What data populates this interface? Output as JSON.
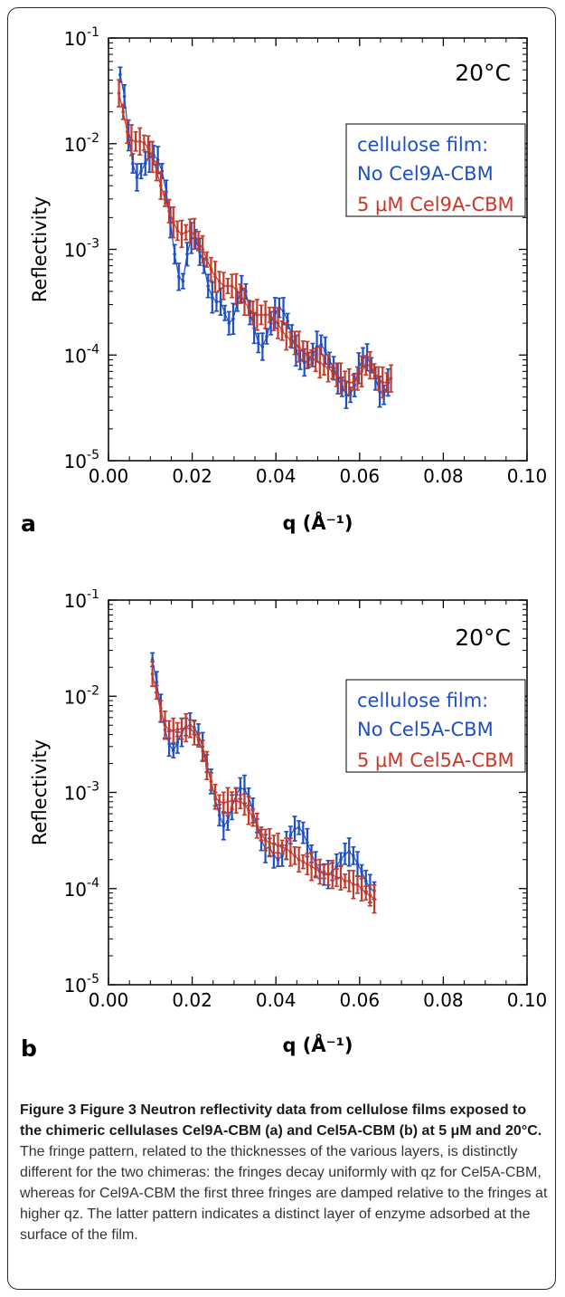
{
  "figure": {
    "caption_title": "Figure 3 Figure 3 Neutron reflectivity data from cellulose films exposed to the chimeric cellulases Cel9A-CBM (a) and Cel5A-CBM (b) at 5 μM and 20°C.",
    "caption_body": "The fringe pattern, related to the thicknesses of the various layers, is distinctly different for the two chimeras: the fringes decay uniformly with qz for Cel5A-CBM, whereas for Cel9A-CBM the first three fringes are damped relative to the fringes at higher qz. The latter pattern indicates a distinct layer of enzyme adsorbed at the surface of the film."
  },
  "chart_data": [
    {
      "type": "scatter",
      "panel_label": "a",
      "annotation": "20°C",
      "xlabel": "q",
      "xlabel_unit": "(Å⁻¹)",
      "ylabel": "Reflectivity",
      "xlim": [
        0.0,
        0.1
      ],
      "ylim": [
        1e-05,
        0.1
      ],
      "yscale": "log",
      "x_ticks": [
        "0.00",
        "0.02",
        "0.04",
        "0.06",
        "0.08",
        "0.10"
      ],
      "y_ticks": [
        {
          "base": "10",
          "exp": "-1"
        },
        {
          "base": "10",
          "exp": "-2"
        },
        {
          "base": "10",
          "exp": "-3"
        },
        {
          "base": "10",
          "exp": "-4"
        },
        {
          "base": "10",
          "exp": "-5"
        }
      ],
      "legend": {
        "header": "cellulose film:",
        "position": "top-right",
        "entries": [
          "No Cel9A-CBM",
          "5 μM Cel9A-CBM"
        ]
      },
      "series": [
        {
          "name": "No Cel9A-CBM",
          "color": "#1f4fc4",
          "x": [
            0.0028,
            0.0038,
            0.0048,
            0.0058,
            0.0068,
            0.0078,
            0.0088,
            0.0098,
            0.0108,
            0.0118,
            0.0128,
            0.0138,
            0.0148,
            0.0158,
            0.0168,
            0.0178,
            0.0188,
            0.0198,
            0.0208,
            0.0218,
            0.0228,
            0.0238,
            0.0248,
            0.0258,
            0.0268,
            0.0278,
            0.0288,
            0.0298,
            0.0308,
            0.0318,
            0.0328,
            0.0338,
            0.0348,
            0.0358,
            0.0368,
            0.0378,
            0.0388,
            0.0398,
            0.0408,
            0.0418,
            0.0428,
            0.0438,
            0.0448,
            0.0458,
            0.0468,
            0.0478,
            0.0488,
            0.0498,
            0.0508,
            0.0518,
            0.0528,
            0.0538,
            0.0548,
            0.0558,
            0.0568,
            0.0578,
            0.0588,
            0.0598,
            0.0608,
            0.0618,
            0.0628,
            0.0638,
            0.0648,
            0.0658,
            0.0668
          ],
          "y": [
            0.045,
            0.028,
            0.012,
            0.0065,
            0.0048,
            0.0055,
            0.0065,
            0.0075,
            0.0078,
            0.007,
            0.0055,
            0.0035,
            0.0018,
            0.0009,
            0.00055,
            0.0005,
            0.0009,
            0.00128,
            0.00125,
            0.00095,
            0.0007,
            0.00045,
            0.00035,
            0.00032,
            0.00032,
            0.00025,
            0.0002,
            0.00022,
            0.00032,
            0.00042,
            0.0004,
            0.00025,
            0.00018,
            0.00013,
            0.00012,
            0.00015,
            0.0002,
            0.00025,
            0.00028,
            0.00026,
            0.00021,
            0.00015,
            0.00011,
            9e-05,
            8.5e-05,
            9e-05,
            0.0001,
            0.00012,
            0.000125,
            0.00011,
            9e-05,
            7.5e-05,
            6e-05,
            5e-05,
            4.2e-05,
            4.2e-05,
            5.2e-05,
            7.5e-05,
            9.5e-05,
            9.5e-05,
            8e-05,
            6e-05,
            4.5e-05,
            4.2e-05,
            5.5e-05
          ]
        },
        {
          "name": "5 μM Cel9A-CBM",
          "color": "#c43a2a",
          "x": [
            0.0025,
            0.0035,
            0.0045,
            0.0055,
            0.0065,
            0.0075,
            0.0085,
            0.0095,
            0.0105,
            0.0115,
            0.0125,
            0.0135,
            0.0145,
            0.0155,
            0.0165,
            0.0175,
            0.0185,
            0.0195,
            0.0205,
            0.0215,
            0.0225,
            0.0235,
            0.0245,
            0.0255,
            0.0265,
            0.0275,
            0.0285,
            0.0295,
            0.0305,
            0.0315,
            0.0325,
            0.0335,
            0.0345,
            0.0355,
            0.0365,
            0.0375,
            0.0385,
            0.0395,
            0.0405,
            0.0415,
            0.0425,
            0.0435,
            0.0445,
            0.0455,
            0.0465,
            0.0475,
            0.0485,
            0.0495,
            0.0505,
            0.0515,
            0.0525,
            0.0535,
            0.0545,
            0.0555,
            0.0565,
            0.0575,
            0.0585,
            0.0595,
            0.0605,
            0.0615,
            0.0625,
            0.0635,
            0.0645,
            0.0655,
            0.0665,
            0.0675
          ],
          "y": [
            0.03,
            0.02,
            0.013,
            0.0108,
            0.0105,
            0.0105,
            0.0102,
            0.0092,
            0.0075,
            0.0055,
            0.004,
            0.003,
            0.0023,
            0.0018,
            0.0015,
            0.0014,
            0.00145,
            0.0015,
            0.0014,
            0.0012,
            0.001,
            0.0008,
            0.00065,
            0.00055,
            0.0005,
            0.00045,
            0.00045,
            0.00045,
            0.00042,
            0.00038,
            0.00032,
            0.00028,
            0.00025,
            0.00024,
            0.00024,
            0.00024,
            0.00024,
            0.00022,
            0.0002,
            0.00017,
            0.00015,
            0.00014,
            0.00013,
            0.00012,
            0.00011,
            0.0001,
            9.5e-05,
            9e-05,
            8.5e-05,
            8e-05,
            7.5e-05,
            7e-05,
            6.5e-05,
            6e-05,
            5.7e-05,
            5.5e-05,
            5.5e-05,
            6e-05,
            7e-05,
            8e-05,
            8e-05,
            7e-05,
            6e-05,
            5.5e-05,
            5.5e-05,
            6e-05
          ]
        }
      ]
    },
    {
      "type": "scatter",
      "panel_label": "b",
      "annotation": "20°C",
      "xlabel": "q",
      "xlabel_unit": "(Å⁻¹)",
      "ylabel": "Reflectivity",
      "xlim": [
        0.0,
        0.1
      ],
      "ylim": [
        1e-05,
        0.1
      ],
      "yscale": "log",
      "x_ticks": [
        "0.00",
        "0.02",
        "0.04",
        "0.06",
        "0.08",
        "0.10"
      ],
      "y_ticks": [
        {
          "base": "10",
          "exp": "-1"
        },
        {
          "base": "10",
          "exp": "-2"
        },
        {
          "base": "10",
          "exp": "-3"
        },
        {
          "base": "10",
          "exp": "-4"
        },
        {
          "base": "10",
          "exp": "-5"
        }
      ],
      "legend": {
        "header": "cellulose film:",
        "position": "top-right",
        "entries": [
          "No Cel5A-CBM",
          "5 μM Cel5A-CBM"
        ]
      },
      "series": [
        {
          "name": "No Cel5A-CBM",
          "color": "#1f4fc4",
          "x": [
            0.0105,
            0.0115,
            0.0125,
            0.0135,
            0.0145,
            0.0155,
            0.0165,
            0.0175,
            0.0185,
            0.0195,
            0.0205,
            0.0215,
            0.0225,
            0.0235,
            0.0245,
            0.0255,
            0.0265,
            0.0275,
            0.0285,
            0.0295,
            0.0305,
            0.0315,
            0.0325,
            0.0335,
            0.0345,
            0.0355,
            0.0365,
            0.0375,
            0.0385,
            0.0395,
            0.0405,
            0.0415,
            0.0425,
            0.0435,
            0.0445,
            0.0455,
            0.0465,
            0.0475,
            0.0485,
            0.0495,
            0.0505,
            0.0515,
            0.0525,
            0.0535,
            0.0545,
            0.0555,
            0.0565,
            0.0575,
            0.0585,
            0.0595,
            0.0605,
            0.0615,
            0.0625,
            0.0635
          ],
          "y": [
            0.024,
            0.014,
            0.0075,
            0.0045,
            0.0032,
            0.0027,
            0.0033,
            0.0042,
            0.0048,
            0.005,
            0.0047,
            0.004,
            0.003,
            0.002,
            0.0013,
            0.00085,
            0.00058,
            0.00045,
            0.0005,
            0.0007,
            0.00095,
            0.0011,
            0.00108,
            0.0009,
            0.00065,
            0.00045,
            0.00032,
            0.00026,
            0.00027,
            0.00022,
            0.0002,
            0.00022,
            0.00028,
            0.00036,
            0.00042,
            0.00043,
            0.00038,
            0.0003,
            0.00023,
            0.00018,
            0.00015,
            0.00014,
            0.00014,
            0.00015,
            0.00017,
            0.0002,
            0.00023,
            0.00024,
            0.00022,
            0.00018,
            0.00015,
            0.00012,
            0.0001,
            9.5e-05
          ]
        },
        {
          "name": "5 μM Cel5A-CBM",
          "color": "#c43a2a",
          "x": [
            0.0105,
            0.0115,
            0.0125,
            0.0135,
            0.0145,
            0.0155,
            0.0165,
            0.0175,
            0.0185,
            0.0195,
            0.0205,
            0.0215,
            0.0225,
            0.0235,
            0.0245,
            0.0255,
            0.0265,
            0.0275,
            0.0285,
            0.0295,
            0.0305,
            0.0315,
            0.0325,
            0.0335,
            0.0345,
            0.0355,
            0.0365,
            0.0375,
            0.0385,
            0.0395,
            0.0405,
            0.0415,
            0.0425,
            0.0435,
            0.0445,
            0.0455,
            0.0465,
            0.0475,
            0.0485,
            0.0495,
            0.0505,
            0.0515,
            0.0525,
            0.0535,
            0.0545,
            0.0555,
            0.0565,
            0.0575,
            0.0585,
            0.0595,
            0.0605,
            0.0615,
            0.0625,
            0.0635
          ],
          "y": [
            0.017,
            0.011,
            0.007,
            0.005,
            0.0045,
            0.0044,
            0.0045,
            0.0046,
            0.0047,
            0.0046,
            0.0042,
            0.0035,
            0.0027,
            0.0019,
            0.0013,
            0.0009,
            0.0008,
            0.00078,
            0.0008,
            0.00082,
            0.00082,
            0.0008,
            0.00075,
            0.00065,
            0.00055,
            0.00045,
            0.00037,
            0.00032,
            0.0003,
            0.00029,
            0.00028,
            0.00027,
            0.00026,
            0.00024,
            0.00022,
            0.0002,
            0.00019,
            0.00018,
            0.00017,
            0.00016,
            0.00015,
            0.00015,
            0.00014,
            0.00014,
            0.00013,
            0.00013,
            0.00012,
            0.00012,
            0.00011,
            0.00011,
            0.0001,
            9e-05,
            8.5e-05,
            7.8e-05
          ]
        }
      ]
    }
  ]
}
